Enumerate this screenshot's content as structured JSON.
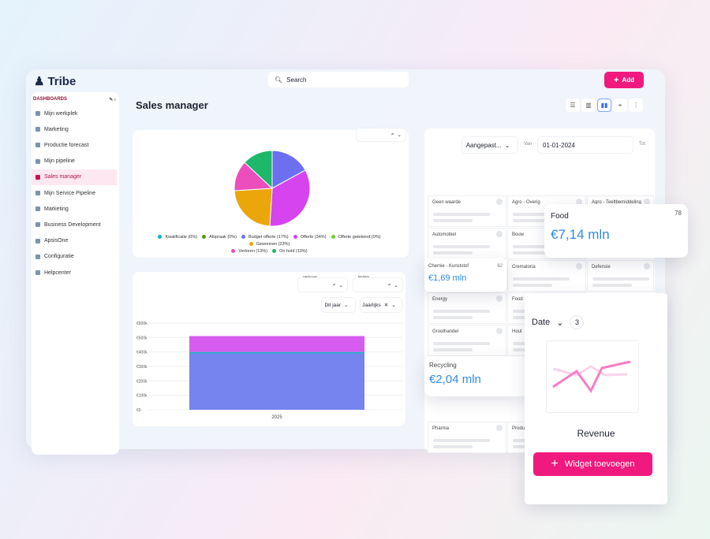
{
  "app": {
    "name": "Tribe",
    "search_placeholder": "Search",
    "add_label": "Add"
  },
  "sidebar": {
    "section": "DASHBOARDS",
    "items": [
      {
        "label": "Mijn werkplek",
        "icon": "home-icon"
      },
      {
        "label": "Marketing",
        "icon": "dashboard-icon"
      },
      {
        "label": "Productie forecast",
        "icon": "dashboard-icon"
      },
      {
        "label": "Mijn pipeline",
        "icon": "dashboard-icon"
      },
      {
        "label": "Sales manager",
        "icon": "dashboard-icon",
        "active": true
      },
      {
        "label": "Mijn Service Pipeline",
        "icon": "dashboard-icon"
      },
      {
        "label": "Marketing",
        "icon": "dashboard-icon"
      },
      {
        "label": "Business Development",
        "icon": "dashboard-icon"
      },
      {
        "label": "ApsisOne",
        "icon": "megaphone-icon"
      },
      {
        "label": "Configuratie",
        "icon": "gear-icon"
      },
      {
        "label": "Helpcenter",
        "icon": "help-icon"
      }
    ]
  },
  "page": {
    "title": "Sales manager",
    "view_icons": [
      "table-icon",
      "columns-icon",
      "bar-chart-icon",
      "map-pin-icon",
      "more-icon"
    ],
    "active_view": "bar-chart-icon"
  },
  "colors": {
    "accent": "#f0197d",
    "link": "#2f8be0"
  },
  "chart_data": [
    {
      "type": "pie",
      "series": [
        {
          "name": "Kwalificatie",
          "pct": 0,
          "color": "#12a9d6"
        },
        {
          "name": "Afspraak",
          "pct": 0,
          "color": "#4f9a1c"
        },
        {
          "name": "Budget offerte",
          "pct": 17,
          "color": "#6b6ff0"
        },
        {
          "name": "Offerte",
          "pct": 34,
          "color": "#d544ef"
        },
        {
          "name": "Offerte getekend",
          "pct": 0,
          "color": "#6fcf2a"
        },
        {
          "name": "Gewonnen",
          "pct": 23,
          "color": "#eaa60a"
        },
        {
          "name": "Verloren",
          "pct": 13,
          "color": "#ec4fbd"
        },
        {
          "name": "On hold",
          "pct": 13,
          "color": "#1db86a"
        }
      ],
      "legend": [
        "Kwalificatie (0%)",
        "Afspraak (0%)",
        "Budget offerte (17%)",
        "Offerte (34%)",
        "Offerte getekend (0%)",
        "Gewonnen (23%)",
        "Verloren (13%)",
        "On hold (13%)"
      ],
      "legend_position": "bottom"
    },
    {
      "type": "bar",
      "stacked": true,
      "categories": [
        "2025"
      ],
      "series": [
        {
          "values": [
            390000
          ],
          "color": "#7684ef"
        },
        {
          "values": [
            10000
          ],
          "color": "#1fb3c8"
        },
        {
          "values": [
            110000
          ],
          "color": "#d65cf0"
        }
      ],
      "ylim": [
        0,
        600000
      ],
      "yticks": [
        "€0",
        "€100k",
        "€200k",
        "€300k",
        "€400k",
        "€500k",
        "€600k"
      ],
      "grid": true
    }
  ],
  "bar_filters": {
    "verkoper_label": "Verkoper",
    "relatie_label": "Relatie",
    "period": "Dit jaar",
    "interval": "Jaarlijks"
  },
  "grid_filters": {
    "preset": "Aangepast...",
    "from_label": "Van",
    "from_value": "01-01-2024",
    "to_label": "Tot"
  },
  "tiles": [
    "Geen waarde",
    "Agro - Overig",
    "Agro - Teeltbemiddeling",
    "Automobiel",
    "Bouw",
    "Crematoria",
    "Defensie",
    "Energy",
    "Food",
    "Groothandel",
    "Hout",
    "Pharma",
    "Produ"
  ],
  "floats": {
    "food": {
      "label": "Food",
      "count": "78",
      "value": "€7,14 mln"
    },
    "chemie": {
      "label": "Chemie - Kunststof",
      "count": "62",
      "value": "€1,69 mln"
    },
    "recycling": {
      "label": "Recycling",
      "value": "€2,04 mln"
    }
  },
  "widget": {
    "date_label": "Date",
    "date_count": "3",
    "title": "Revenue",
    "button": "Widget toevoegen"
  }
}
